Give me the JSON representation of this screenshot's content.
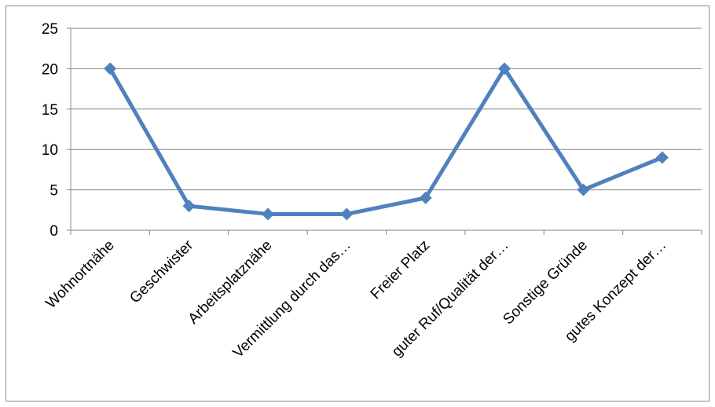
{
  "chart_data": {
    "type": "line",
    "categories": [
      "Wohnortnähe",
      "Geschwister",
      "Arbeitsplatznähe",
      "Vermittlung durch das…",
      "Freier Platz",
      "guter Ruf/Qualität der…",
      "Sonstige Gründe",
      "gutes Konzept der…"
    ],
    "series": [
      {
        "values": [
          20,
          3,
          2,
          2,
          4,
          20,
          5,
          9
        ]
      }
    ],
    "title": "",
    "xlabel": "",
    "ylabel": "",
    "ylim": [
      0,
      25
    ],
    "yticks": [
      0,
      5,
      10,
      15,
      20,
      25
    ],
    "grid": true,
    "legend": "none",
    "colors": {
      "line": "#4f81bd",
      "grid": "#868686",
      "axis": "#868686"
    }
  }
}
